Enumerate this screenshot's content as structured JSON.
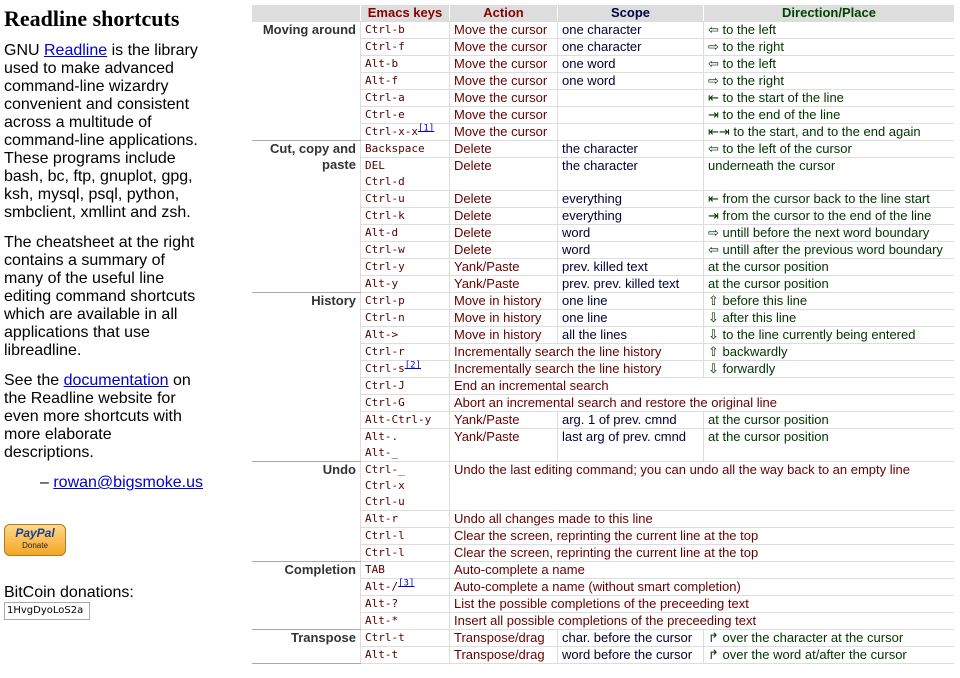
{
  "sidebar": {
    "title": "Readline shortcuts",
    "intro": {
      "before": "GNU ",
      "link": "Readline",
      "after": " is the library used to make advanced command-line wizardry convenient and consistent across a multitude of command-line applications. These programs include bash, bc, ftp, gnuplot, gpg, ksh, mysql, psql, python, smbclient, xmllint and zsh."
    },
    "summary": "The cheatsheet at the right contains a summary of many of the useful line editing command shortcuts which are available in all applications that use libreadline.",
    "see": {
      "before": "See the ",
      "link": "documentation",
      "after": " on the Readline website for even more shortcuts with more elaborate descriptions."
    },
    "signature": {
      "before": "– ",
      "email": "rowan@bigsmoke.us"
    },
    "paypal": {
      "logo": "PayPal",
      "button": "Donate"
    },
    "bitcoin": {
      "label": "BitCoin donations:",
      "address": "1HvgDyoLoS2a"
    }
  },
  "table": {
    "header": [
      "Emacs keys",
      "Action",
      "Scope",
      "Direction/Place"
    ],
    "groups": [
      {
        "label": "Moving around",
        "rows": [
          {
            "keys": [
              "Ctrl-b"
            ],
            "action": "Move the cursor",
            "scope": "one character",
            "direction": "⇦ to the left"
          },
          {
            "keys": [
              "Ctrl-f"
            ],
            "action": "Move the cursor",
            "scope": "one character",
            "direction": "⇨ to the right"
          },
          {
            "keys": [
              "Alt-b"
            ],
            "action": "Move the cursor",
            "scope": "one word",
            "direction": "⇦ to the left"
          },
          {
            "keys": [
              "Alt-f"
            ],
            "action": "Move the cursor",
            "scope": "one word",
            "direction": "⇨ to the right"
          },
          {
            "keys": [
              "Ctrl-a"
            ],
            "action": "Move the cursor",
            "direction": "⇤ to the start of the line"
          },
          {
            "keys": [
              "Ctrl-e"
            ],
            "action": "Move the cursor",
            "direction": "⇥ to the end of the line"
          },
          {
            "keys": [
              "Ctrl-x-x"
            ],
            "note": "[1]",
            "action": "Move the cursor",
            "direction": "⇤⇥ to the start, and to the end again"
          }
        ]
      },
      {
        "label": "Cut, copy and paste",
        "rows": [
          {
            "keys": [
              "Backspace"
            ],
            "action": "Delete",
            "scope": "the character",
            "direction": "⇦ to the left of the cursor"
          },
          {
            "keys": [
              "DEL",
              "Ctrl-d"
            ],
            "action": "Delete",
            "scope": "the character",
            "direction": "underneath the cursor"
          },
          {
            "keys": [
              "Ctrl-u"
            ],
            "action": "Delete",
            "scope": "everything",
            "direction": "⇤ from the cursor back to the line start"
          },
          {
            "keys": [
              "Ctrl-k"
            ],
            "action": "Delete",
            "scope": "everything",
            "direction": "⇥ from the cursor to the end of the line"
          },
          {
            "keys": [
              "Alt-d"
            ],
            "action": "Delete",
            "scope": "word",
            "direction": "⇨ untill before the next word boundary"
          },
          {
            "keys": [
              "Ctrl-w"
            ],
            "action": "Delete",
            "scope": "word",
            "direction": "⇦ untill after the previous word boundary"
          },
          {
            "keys": [
              "Ctrl-y"
            ],
            "action": "Yank/Paste",
            "scope": "prev. killed text",
            "direction": "at the cursor position"
          },
          {
            "keys": [
              "Alt-y"
            ],
            "action": "Yank/Paste",
            "scope": "prev. prev. killed text",
            "direction": "at the cursor position"
          }
        ]
      },
      {
        "label": "History",
        "rows": [
          {
            "keys": [
              "Ctrl-p"
            ],
            "action": "Move in history",
            "scope": "one line",
            "direction": "⇧ before this line"
          },
          {
            "keys": [
              "Ctrl-n"
            ],
            "action": "Move in history",
            "scope": "one line",
            "direction": "⇩ after this line"
          },
          {
            "keys": [
              "Alt->"
            ],
            "action": "Move in history",
            "scope": "all the lines",
            "direction": "⇩ to the line currently being entered"
          },
          {
            "keys": [
              "Ctrl-r"
            ],
            "action": "Incrementally search the line history",
            "direction": "⇧ backwardly"
          },
          {
            "keys": [
              "Ctrl-s"
            ],
            "note": "[2]",
            "action": "Incrementally search the line history",
            "direction": "⇩ forwardly"
          },
          {
            "keys": [
              "Ctrl-J"
            ],
            "action": "End an incremental search"
          },
          {
            "keys": [
              "Ctrl-G"
            ],
            "action": "Abort an incremental search and restore the original line"
          },
          {
            "keys": [
              "Alt-Ctrl-y"
            ],
            "action": "Yank/Paste",
            "scope": "arg. 1 of prev. cmnd",
            "direction": "at the cursor position"
          },
          {
            "keys": [
              "Alt-.",
              "Alt-_"
            ],
            "action": "Yank/Paste",
            "scope": "last arg of prev. cmnd",
            "direction": "at the cursor position"
          }
        ]
      },
      {
        "label": "Undo",
        "rows": [
          {
            "keys": [
              "Ctrl-_",
              "Ctrl-x",
              "Ctrl-u"
            ],
            "action": "Undo the last editing command; you can undo all the way back to an empty line"
          },
          {
            "keys": [
              "Alt-r"
            ],
            "action": "Undo all changes made to this line"
          },
          {
            "keys": [
              "Ctrl-l"
            ],
            "action": "Clear the screen, reprinting the current line at the top"
          },
          {
            "keys": [
              "Ctrl-l"
            ],
            "action": "Clear the screen, reprinting the current line at the top"
          }
        ]
      },
      {
        "label": "Completion",
        "rows": [
          {
            "keys": [
              "TAB"
            ],
            "action": "Auto-complete a name"
          },
          {
            "keys": [
              "Alt-/"
            ],
            "note": "[3]",
            "action": "Auto-complete a name (without smart completion)"
          },
          {
            "keys": [
              "Alt-?"
            ],
            "action": "List the possible completions of the preceeding text"
          },
          {
            "keys": [
              "Alt-*"
            ],
            "action": "Insert all possible completions of the preceeding text"
          }
        ]
      },
      {
        "label": "Transpose",
        "rows": [
          {
            "keys": [
              "Ctrl-t"
            ],
            "action": "Transpose/drag",
            "scope": "char. before the cursor",
            "direction": "↱ over the character at the cursor"
          },
          {
            "keys": [
              "Alt-t"
            ],
            "action": "Transpose/drag",
            "scope": "word before the cursor",
            "direction": "↱ over the word at/after the cursor"
          }
        ]
      }
    ]
  }
}
